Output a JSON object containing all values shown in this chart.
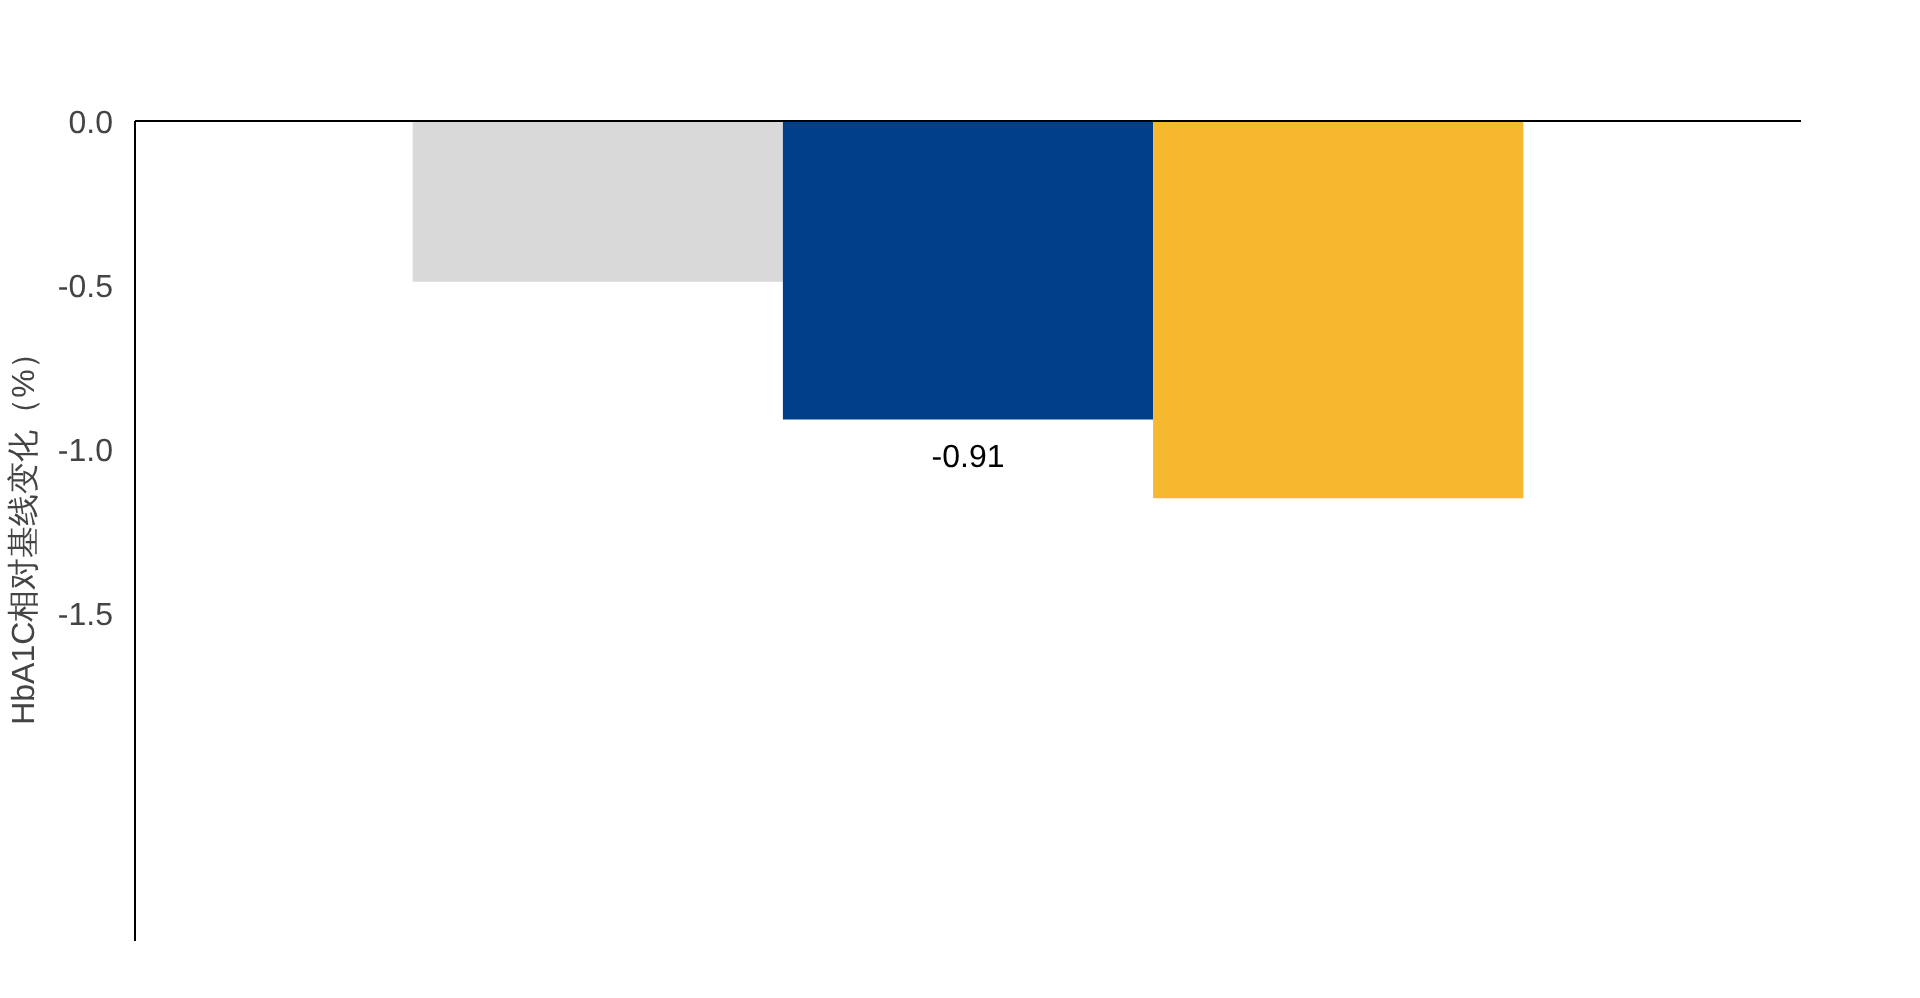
{
  "chart_data": {
    "type": "bar",
    "ylabel": "HbA1C相对基线变化（%）",
    "categories": [
      null,
      null,
      null
    ],
    "values": [
      -0.49,
      -0.91,
      -1.15
    ],
    "colors": [
      "#d9d9d9",
      "#003f8a",
      "#f5b82e"
    ],
    "value_labels": [
      null,
      "-0.91",
      null
    ],
    "ylim": [
      -2.5,
      0.0
    ],
    "yticks": [
      {
        "value": 0.0,
        "label": "0.0"
      },
      {
        "value": -0.5,
        "label": "-0.5"
      },
      {
        "value": -1.0,
        "label": "-1.0"
      },
      {
        "value": -1.5,
        "label": "-1.5"
      }
    ],
    "tick_labels": "y",
    "grid": false
  }
}
